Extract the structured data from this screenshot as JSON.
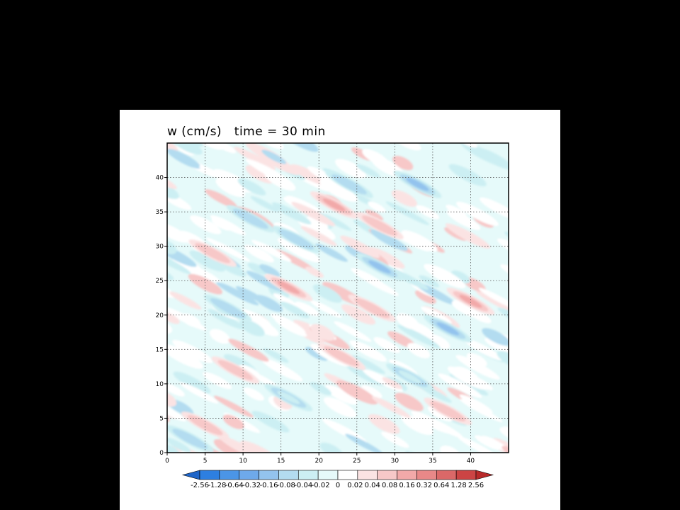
{
  "chart_data": {
    "type": "heatmap",
    "title": "w (cm/s)   time = 30 min",
    "xlim": [
      0,
      45
    ],
    "ylim": [
      0,
      45
    ],
    "x_ticks": [
      0,
      5,
      10,
      15,
      20,
      25,
      30,
      35,
      40
    ],
    "y_ticks": [
      0,
      5,
      10,
      15,
      20,
      25,
      30,
      35,
      40
    ],
    "grid": true,
    "colorbar": {
      "levels": [
        "-2.56",
        "-1.28",
        "-0.64",
        "-0.32",
        "-0.16",
        "-0.08",
        "-0.04",
        "-0.02",
        "0",
        "0.02",
        "0.04",
        "0.08",
        "0.16",
        "0.32",
        "0.64",
        "1.28",
        "2.56"
      ],
      "colors": [
        "#1f66c9",
        "#2d7fe0",
        "#4b95e6",
        "#6ea9ea",
        "#93c3ee",
        "#b3dcf0",
        "#cceff3",
        "#e6fafa",
        "#ffffff",
        "#fbe3e3",
        "#f7c8c8",
        "#f2a9a9",
        "#e88888",
        "#db6868",
        "#cc4444",
        "#b82a2a"
      ]
    },
    "features": [
      {
        "kind": "negative",
        "x": 11,
        "y": 34,
        "level": -0.08
      },
      {
        "kind": "negative",
        "x": 24,
        "y": 39,
        "level": -0.08
      },
      {
        "kind": "negative",
        "x": 33,
        "y": 39,
        "level": -0.16
      },
      {
        "kind": "negative",
        "x": 28,
        "y": 27,
        "level": -0.16
      },
      {
        "kind": "negative",
        "x": 17,
        "y": 31,
        "level": -0.08
      },
      {
        "kind": "negative",
        "x": 8,
        "y": 21,
        "level": -0.08
      },
      {
        "kind": "negative",
        "x": 37,
        "y": 18,
        "level": -0.16
      },
      {
        "kind": "negative",
        "x": 32,
        "y": 11,
        "level": -0.04
      },
      {
        "kind": "negative",
        "x": 16,
        "y": 8,
        "level": -0.04
      },
      {
        "kind": "negative",
        "x": 3,
        "y": 2,
        "level": -0.08
      },
      {
        "kind": "positive",
        "x": 6,
        "y": 29,
        "level": 0.04
      },
      {
        "kind": "positive",
        "x": 22,
        "y": 36,
        "level": 0.08
      },
      {
        "kind": "positive",
        "x": 28,
        "y": 33,
        "level": 0.04
      },
      {
        "kind": "positive",
        "x": 16,
        "y": 24,
        "level": 0.08
      },
      {
        "kind": "positive",
        "x": 27,
        "y": 21,
        "level": 0.04
      },
      {
        "kind": "positive",
        "x": 40,
        "y": 22,
        "level": 0.08
      },
      {
        "kind": "positive",
        "x": 23,
        "y": 14,
        "level": 0.04
      },
      {
        "kind": "positive",
        "x": 37,
        "y": 6,
        "level": 0.04
      },
      {
        "kind": "positive",
        "x": 9,
        "y": 12,
        "level": 0.04
      },
      {
        "kind": "positive",
        "x": 5,
        "y": 4,
        "level": 0.04
      }
    ]
  }
}
